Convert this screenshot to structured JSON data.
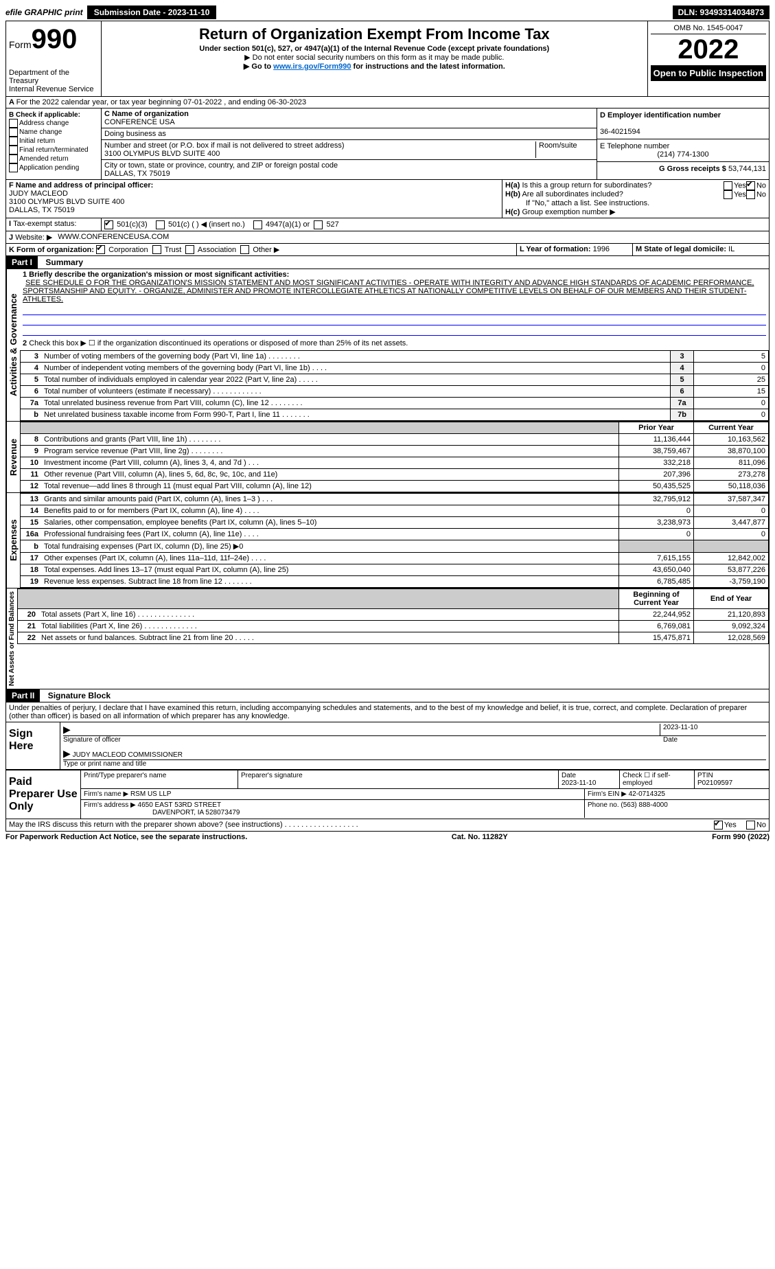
{
  "topbar": {
    "efile": "efile GRAPHIC print",
    "submission": "Submission Date - 2023-11-10",
    "dln": "DLN: 93493314034873"
  },
  "header": {
    "form_prefix": "Form",
    "form_number": "990",
    "title": "Return of Organization Exempt From Income Tax",
    "subtitle": "Under section 501(c), 527, or 4947(a)(1) of the Internal Revenue Code (except private foundations)",
    "warn": "▶ Do not enter social security numbers on this form as it may be made public.",
    "goto_pre": "▶ Go to ",
    "goto_link": "www.irs.gov/Form990",
    "goto_post": " for instructions and the latest information.",
    "dept": "Department of the Treasury",
    "irs": "Internal Revenue Service",
    "omb": "OMB No. 1545-0047",
    "year": "2022",
    "inspect": "Open to Public Inspection"
  },
  "periodA": "For the 2022 calendar year, or tax year beginning 07-01-2022     , and ending 06-30-2023",
  "checkB": {
    "title": "B Check if applicable:",
    "items": [
      "Address change",
      "Name change",
      "Initial return",
      "Final return/terminated",
      "Amended return",
      "Application pending"
    ]
  },
  "org": {
    "c_label": "C Name of organization",
    "name": "CONFERENCE USA",
    "dba_label": "Doing business as",
    "addr_label": "Number and street (or P.O. box if mail is not delivered to street address)",
    "room_label": "Room/suite",
    "addr": "3100 OLYMPUS BLVD SUITE 400",
    "city_label": "City or town, state or province, country, and ZIP or foreign postal code",
    "city": "DALLAS, TX  75019"
  },
  "rightD": {
    "d_label": "D Employer identification number",
    "ein": "36-4021594",
    "e_label": "E Telephone number",
    "phone": "(214) 774-1300",
    "g_label": "G Gross receipts $",
    "gross": "53,744,131"
  },
  "sectionF": {
    "f_label": "F  Name and address of principal officer:",
    "name": "JUDY MACLEOD",
    "addr1": "3100 OLYMPUS BLVD SUITE 400",
    "addr2": "DALLAS, TX  75019",
    "ha": "H(a)  Is this a group return for subordinates?",
    "hb": "H(b)  Are all subordinates included?",
    "hb_note": "If \"No,\" attach a list. See instructions.",
    "hc": "H(c)  Group exemption number ▶",
    "yes": "Yes",
    "no": "No"
  },
  "taxExempt": {
    "i_label": "Tax-exempt status:",
    "opt1": "501(c)(3)",
    "opt2": "501(c) (   ) ◀ (insert no.)",
    "opt3": "4947(a)(1) or",
    "opt4": "527"
  },
  "website": {
    "j_label": "Website: ▶",
    "url": "WWW.CONFERENCEUSA.COM"
  },
  "formK": {
    "k_label": "K Form of organization:",
    "corp": "Corporation",
    "trust": "Trust",
    "assoc": "Association",
    "other": "Other ▶",
    "l_label": "L Year of formation:",
    "l_val": "1996",
    "m_label": "M State of legal domicile:",
    "m_val": "IL"
  },
  "part1": {
    "label": "Part I",
    "title": "Summary",
    "line1_label": "1 Briefly describe the organization's mission or most significant activities:",
    "mission": "SEE SCHEDULE O FOR THE ORGANIZATION'S MISSION STATEMENT AND MOST SIGNIFICANT ACTIVITIES - OPERATE WITH INTEGRITY AND ADVANCE HIGH STANDARDS OF ACADEMIC PERFORMANCE, SPORTSMANSHIP AND EQUITY. - ORGANIZE, ADMINISTER AND PROMOTE INTERCOLLEGIATE ATHLETICS AT NATIONALLY COMPETITIVE LEVELS ON BEHALF OF OUR MEMBERS AND THEIR STUDENT-ATHLETES.",
    "line2": "Check this box ▶ ☐  if the organization discontinued its operations or disposed of more than 25% of its net assets.",
    "side_gov": "Activities & Governance",
    "side_rev": "Revenue",
    "side_exp": "Expenses",
    "side_net": "Net Assets or Fund Balances",
    "prior_year": "Prior Year",
    "current_year": "Current Year",
    "begin_year": "Beginning of Current Year",
    "end_year": "End of Year"
  },
  "gov_rows": [
    {
      "n": "3",
      "desc": "Number of voting members of the governing body (Part VI, line 1a)   .    .    .    .    .    .    .    .",
      "lbl": "3",
      "val": "5"
    },
    {
      "n": "4",
      "desc": "Number of independent voting members of the governing body (Part VI, line 1b)   .    .    .    .",
      "lbl": "4",
      "val": "0"
    },
    {
      "n": "5",
      "desc": "Total number of individuals employed in calendar year 2022 (Part V, line 2a)   .    .    .    .    .",
      "lbl": "5",
      "val": "25"
    },
    {
      "n": "6",
      "desc": "Total number of volunteers (estimate if necessary)    .    .    .    .    .    .    .    .    .    .    .    .",
      "lbl": "6",
      "val": "15"
    },
    {
      "n": "7a",
      "desc": "Total unrelated business revenue from Part VIII, column (C), line 12   .    .    .    .    .    .    .    .",
      "lbl": "7a",
      "val": "0"
    },
    {
      "n": "b",
      "desc": "Net unrelated business taxable income from Form 990-T, Part I, line 11    .    .    .    .    .    .    .",
      "lbl": "7b",
      "val": "0"
    }
  ],
  "rev_rows": [
    {
      "n": "8",
      "desc": "Contributions and grants (Part VIII, line 1h)    .    .    .    .    .    .    .    .",
      "py": "11,136,444",
      "cy": "10,163,562"
    },
    {
      "n": "9",
      "desc": "Program service revenue (Part VIII, line 2g)   .    .    .    .    .    .    .    .",
      "py": "38,759,467",
      "cy": "38,870,100"
    },
    {
      "n": "10",
      "desc": "Investment income (Part VIII, column (A), lines 3, 4, and 7d )   .    .    .",
      "py": "332,218",
      "cy": "811,096"
    },
    {
      "n": "11",
      "desc": "Other revenue (Part VIII, column (A), lines 5, 6d, 8c, 9c, 10c, and 11e)",
      "py": "207,396",
      "cy": "273,278"
    },
    {
      "n": "12",
      "desc": "Total revenue—add lines 8 through 11 (must equal Part VIII, column (A), line 12)",
      "py": "50,435,525",
      "cy": "50,118,036"
    }
  ],
  "exp_rows": [
    {
      "n": "13",
      "desc": "Grants and similar amounts paid (Part IX, column (A), lines 1–3 )   .    .    .",
      "py": "32,795,912",
      "cy": "37,587,347"
    },
    {
      "n": "14",
      "desc": "Benefits paid to or for members (Part IX, column (A), line 4)   .    .    .    .",
      "py": "0",
      "cy": "0"
    },
    {
      "n": "15",
      "desc": "Salaries, other compensation, employee benefits (Part IX, column (A), lines 5–10)",
      "py": "3,238,973",
      "cy": "3,447,877"
    },
    {
      "n": "16a",
      "desc": "Professional fundraising fees (Part IX, column (A), line 11e)   .    .    .    .",
      "py": "0",
      "cy": "0"
    },
    {
      "n": "b",
      "desc": "Total fundraising expenses (Part IX, column (D), line 25) ▶0",
      "py": "",
      "cy": "",
      "shade": true
    },
    {
      "n": "17",
      "desc": "Other expenses (Part IX, column (A), lines 11a–11d, 11f–24e)    .    .    .    .",
      "py": "7,615,155",
      "cy": "12,842,002"
    },
    {
      "n": "18",
      "desc": "Total expenses. Add lines 13–17 (must equal Part IX, column (A), line 25)",
      "py": "43,650,040",
      "cy": "53,877,226"
    },
    {
      "n": "19",
      "desc": "Revenue less expenses. Subtract line 18 from line 12   .    .    .    .    .    .    .",
      "py": "6,785,485",
      "cy": "-3,759,190"
    }
  ],
  "net_rows": [
    {
      "n": "20",
      "desc": "Total assets (Part X, line 16)   .    .    .    .    .    .    .    .    .    .    .    .    .    .",
      "py": "22,244,952",
      "cy": "21,120,893"
    },
    {
      "n": "21",
      "desc": "Total liabilities (Part X, line 26)   .    .    .    .    .    .    .    .    .    .    .    .    .",
      "py": "6,769,081",
      "cy": "9,092,324"
    },
    {
      "n": "22",
      "desc": "Net assets or fund balances. Subtract line 21 from line 20   .    .    .    .    .",
      "py": "15,475,871",
      "cy": "12,028,569"
    }
  ],
  "part2": {
    "label": "Part II",
    "title": "Signature Block",
    "penalty": "Under penalties of perjury, I declare that I have examined this return, including accompanying schedules and statements, and to the best of my knowledge and belief, it is true, correct, and complete. Declaration of preparer (other than officer) is based on all information of which preparer has any knowledge.",
    "sign_here": "Sign Here",
    "sig_officer": "Signature of officer",
    "date": "Date",
    "sig_date": "2023-11-10",
    "name_title": "JUDY MACLEOD  COMMISSIONER",
    "type_name": "Type or print name and title",
    "paid": "Paid Preparer Use Only",
    "prep_name_label": "Print/Type preparer's name",
    "prep_sig_label": "Preparer's signature",
    "prep_date": "2023-11-10",
    "check_self": "Check ☐ if self-employed",
    "ptin_label": "PTIN",
    "ptin": "P02109597",
    "firm_name_label": "Firm's name     ▶",
    "firm_name": "RSM US LLP",
    "firm_ein_label": "Firm's EIN ▶",
    "firm_ein": "42-0714325",
    "firm_addr_label": "Firm's address ▶",
    "firm_addr1": "4650 EAST 53RD STREET",
    "firm_addr2": "DAVENPORT, IA  528073479",
    "phone_label": "Phone no.",
    "phone": "(563) 888-4000",
    "discuss": "May the IRS discuss this return with the preparer shown above? (see instructions)    .    .    .    .    .    .    .    .    .    .    .    .    .    .    .    .    .    .",
    "discuss_yes": "Yes",
    "discuss_no": "No"
  },
  "footer": {
    "left": "For Paperwork Reduction Act Notice, see the separate instructions.",
    "mid": "Cat. No. 11282Y",
    "right": "Form 990 (2022)"
  }
}
